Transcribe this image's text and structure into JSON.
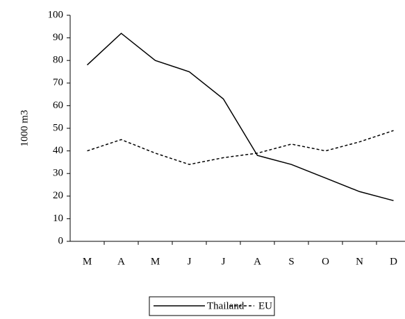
{
  "chart_data": {
    "type": "line",
    "y_label": "1000 m3",
    "categories": [
      "M",
      "A",
      "M",
      "J",
      "J",
      "A",
      "S",
      "O",
      "N",
      "D"
    ],
    "series": [
      {
        "name": "Thailand",
        "color": "#000000",
        "dash": false,
        "values": [
          78,
          92,
          80,
          75,
          63,
          38,
          34,
          28,
          22,
          18
        ]
      },
      {
        "name": "EU",
        "color": "#000000",
        "dash": true,
        "values": [
          40,
          45,
          39,
          34,
          37,
          39,
          43,
          40,
          44,
          49
        ]
      }
    ],
    "ylim": [
      0,
      100
    ],
    "yticks": [
      0,
      10,
      20,
      30,
      40,
      50,
      60,
      70,
      80,
      90,
      100
    ],
    "legend": "bottom"
  }
}
